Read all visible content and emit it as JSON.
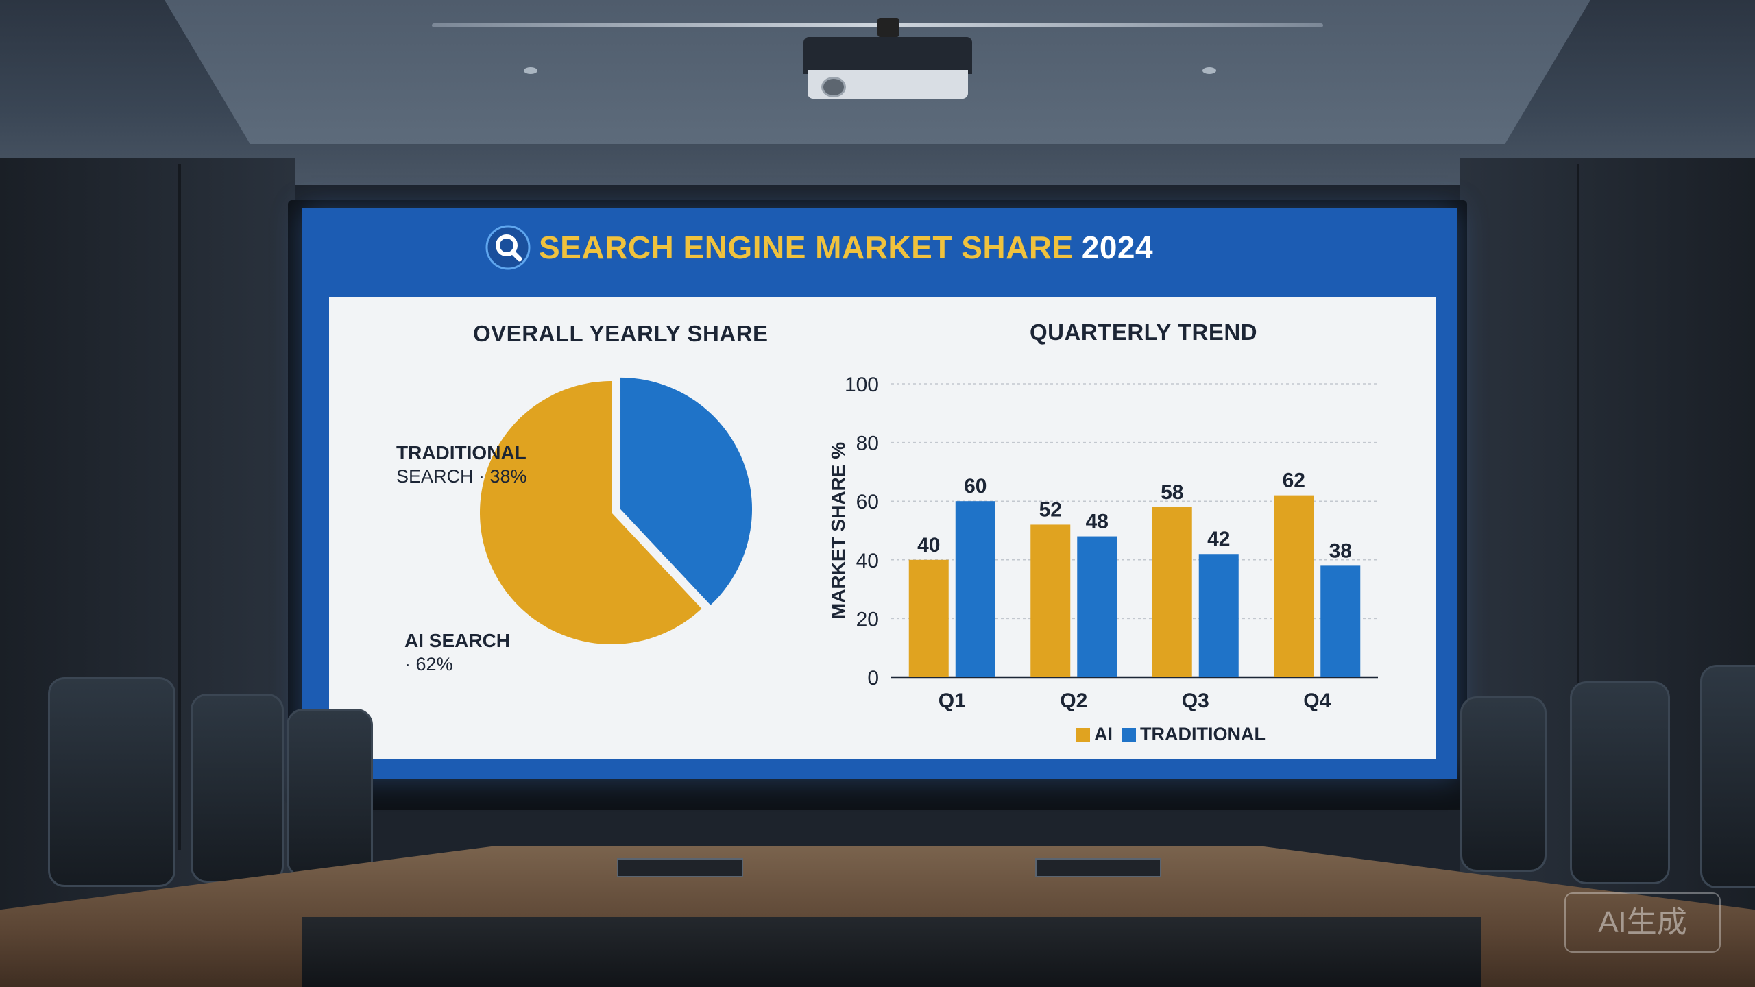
{
  "slide": {
    "title_main": "SEARCH ENGINE MARKET SHARE",
    "title_year": "2024",
    "left_title": "OVERALL YEARLY SHARE",
    "right_title": "QUARTERLY TREND",
    "pie_label_traditional_line1": "TRADITIONAL",
    "pie_label_traditional_line2": "SEARCH · 38%",
    "pie_label_ai_line1": "AI SEARCH",
    "pie_label_ai_line2": "· 62%",
    "legend_ai": "AI",
    "legend_traditional": "TRADITIONAL"
  },
  "colors": {
    "ai": "#e0a320",
    "traditional": "#1f73c8",
    "slide_bg": "#1c5cb3",
    "title": "#f0c23d"
  },
  "watermark": "AI生成",
  "chart_data": [
    {
      "type": "pie",
      "title": "OVERALL YEARLY SHARE",
      "slices": [
        {
          "label": "AI SEARCH",
          "value": 62,
          "color": "#e0a320"
        },
        {
          "label": "TRADITIONAL SEARCH",
          "value": 38,
          "color": "#1f73c8"
        }
      ]
    },
    {
      "type": "bar",
      "title": "QUARTERLY TREND",
      "xlabel": "",
      "ylabel": "MARKET SHARE %",
      "ylim": [
        0,
        100
      ],
      "yticks": [
        0,
        20,
        40,
        60,
        80,
        100
      ],
      "categories": [
        "Q1",
        "Q2",
        "Q3",
        "Q4"
      ],
      "series": [
        {
          "name": "AI",
          "values": [
            40,
            52,
            58,
            62
          ],
          "color": "#e0a320"
        },
        {
          "name": "TRADITIONAL",
          "values": [
            60,
            48,
            42,
            38
          ],
          "color": "#1f73c8"
        }
      ],
      "grid": true,
      "legend": "bottom"
    }
  ]
}
